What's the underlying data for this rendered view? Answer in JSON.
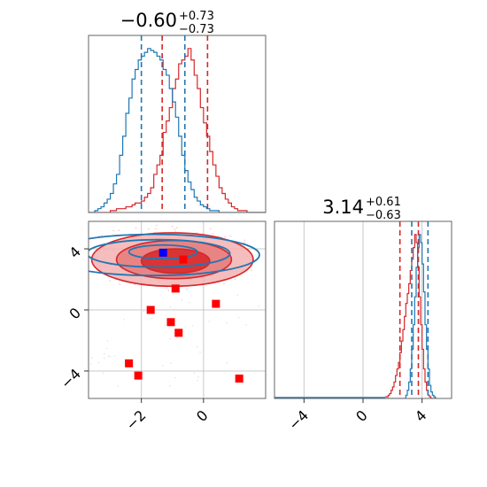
{
  "colors": {
    "red": "#d62728",
    "blue": "#1f77b4",
    "red_fill_light": "#f3b1b1",
    "red_fill_mid": "#e67a7a",
    "red_fill_dark": "#d62728",
    "grid": "#c8c8c8",
    "frame": "#666666",
    "marker_red": "#ff0000",
    "marker_blue": "#0000ff"
  },
  "chart_data": [
    {
      "panel": "top-left",
      "type": "histogram",
      "title_main": "−0.60",
      "title_sup": "+0.73",
      "title_sub": "−0.73",
      "xlim": [
        -3.7,
        2.0
      ],
      "grid": false,
      "series": [
        {
          "color": "red",
          "bin_start": -3.7,
          "bin_width": 0.1,
          "counts": [
            0,
            0,
            0,
            0,
            0,
            0,
            0,
            1,
            1,
            2,
            2,
            2,
            3,
            3,
            4,
            5,
            5,
            6,
            8,
            10,
            13,
            20,
            25,
            30,
            42,
            48,
            55,
            65,
            70,
            78,
            80,
            82,
            86,
            80,
            72,
            65,
            55,
            47,
            40,
            32,
            25,
            19,
            13,
            10,
            7,
            5,
            3,
            2,
            1,
            1,
            1,
            0,
            0,
            0,
            0,
            0,
            0
          ],
          "quantile_lines": [
            -1.33,
            0.13
          ]
        },
        {
          "color": "blue",
          "bin_start": -3.7,
          "bin_width": 0.1,
          "counts": [
            0,
            0,
            1,
            2,
            3,
            5,
            7,
            10,
            15,
            20,
            30,
            40,
            52,
            60,
            70,
            75,
            80,
            82,
            84,
            86,
            85,
            84,
            82,
            80,
            75,
            72,
            65,
            58,
            50,
            40,
            30,
            22,
            16,
            12,
            8,
            6,
            4,
            3,
            2,
            1,
            1,
            1,
            0,
            0,
            0,
            0,
            0,
            0,
            0,
            0,
            0,
            0,
            0,
            0,
            0,
            0,
            0
          ],
          "quantile_lines": [
            -2.0,
            -0.6
          ]
        }
      ]
    },
    {
      "panel": "bottom-left",
      "type": "scatter-contour",
      "xlim": [
        -3.7,
        2.0
      ],
      "ylim": [
        -5.8,
        5.8
      ],
      "xticks": [
        "−2",
        "0"
      ],
      "yticks": [
        "4",
        "0",
        "−4"
      ],
      "xtick_values": [
        -2,
        0
      ],
      "ytick_values": [
        4,
        0,
        -4
      ],
      "grid": true,
      "red_contours": [
        {
          "cx": -1.0,
          "cy": 3.3,
          "rx": 2.6,
          "ry": 1.75,
          "level": 0.5
        },
        {
          "cx": -0.95,
          "cy": 3.3,
          "rx": 1.85,
          "ry": 1.25,
          "level": 1.0
        },
        {
          "cx": -0.9,
          "cy": 3.2,
          "rx": 1.1,
          "ry": 0.8,
          "level": 1.5
        }
      ],
      "blue_contours": [
        {
          "cx": -1.6,
          "cy": 3.6,
          "rx": 3.4,
          "ry": 1.35
        },
        {
          "cx": -1.45,
          "cy": 3.7,
          "rx": 2.3,
          "ry": 0.9
        },
        {
          "cx": -1.3,
          "cy": 3.8,
          "rx": 1.1,
          "ry": 0.45
        }
      ],
      "red_markers": [
        {
          "x": -0.65,
          "y": 3.3
        },
        {
          "x": -0.9,
          "y": 1.4
        },
        {
          "x": -1.7,
          "y": 0.0
        },
        {
          "x": 0.4,
          "y": 0.4
        },
        {
          "x": -1.05,
          "y": -0.8
        },
        {
          "x": -0.8,
          "y": -1.5
        },
        {
          "x": -2.4,
          "y": -3.5
        },
        {
          "x": -2.1,
          "y": -4.3
        },
        {
          "x": 1.15,
          "y": -4.5
        }
      ],
      "blue_markers": [
        {
          "x": -1.3,
          "y": 3.75
        }
      ]
    },
    {
      "panel": "bottom-right",
      "type": "histogram",
      "title_main": "3.14",
      "title_sup": "+0.61",
      "title_sub": "−0.63",
      "xlim": [
        -6.0,
        6.0
      ],
      "xticks": [
        "−4",
        "0",
        "4"
      ],
      "xtick_values": [
        -4,
        0,
        4
      ],
      "grid": true,
      "series": [
        {
          "color": "red",
          "bin_start": 1.5,
          "bin_width": 0.1,
          "counts": [
            1,
            1,
            2,
            3,
            5,
            7,
            10,
            14,
            18,
            22,
            28,
            35,
            42,
            50,
            58,
            64,
            70,
            78,
            85,
            92,
            100,
            95,
            80,
            62,
            45,
            30,
            18,
            10,
            5,
            2,
            1,
            0,
            0,
            0,
            0
          ],
          "quantile_lines": [
            2.5,
            3.75
          ]
        },
        {
          "color": "blue",
          "bin_start": 1.5,
          "bin_width": 0.1,
          "counts": [
            0,
            0,
            0,
            0,
            0,
            0,
            0,
            0,
            0,
            0,
            0,
            0,
            0,
            0,
            2,
            5,
            10,
            18,
            30,
            45,
            62,
            80,
            92,
            100,
            95,
            82,
            65,
            45,
            30,
            18,
            8,
            4,
            2,
            1,
            0
          ],
          "quantile_lines": [
            3.3,
            4.4
          ]
        }
      ]
    }
  ]
}
